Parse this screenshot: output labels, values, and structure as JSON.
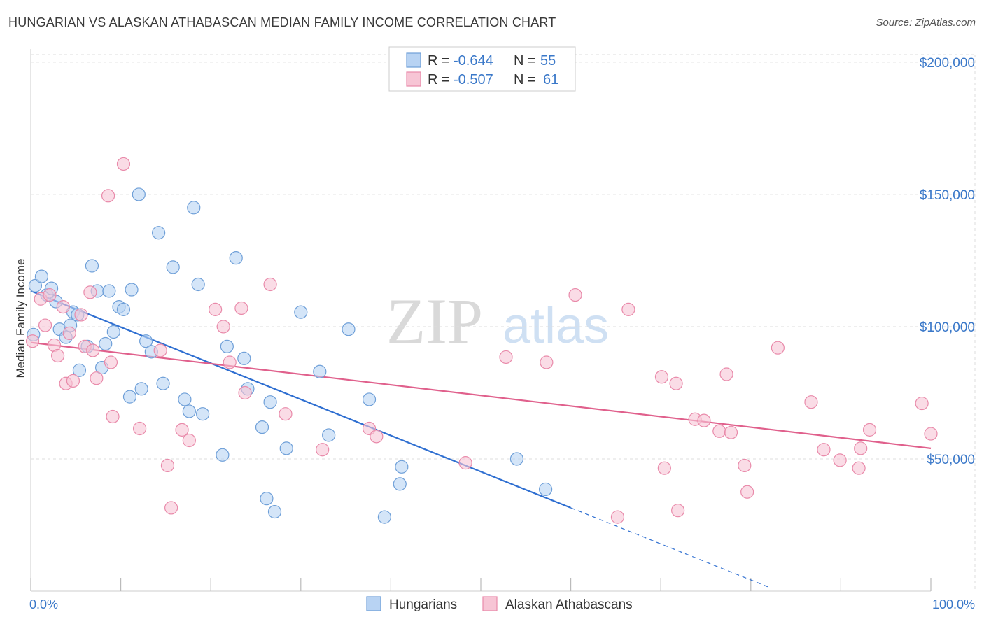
{
  "header": {
    "title": "HUNGARIAN VS ALASKAN ATHABASCAN MEDIAN FAMILY INCOME CORRELATION CHART",
    "source": "Source: ZipAtlas.com"
  },
  "watermark": {
    "zip": "ZIP",
    "atlas": "atlas"
  },
  "colors": {
    "blue_fill": "#b8d3f3",
    "blue_stroke": "#6e9fd8",
    "blue_line": "#2f6fd1",
    "pink_fill": "#f7c5d5",
    "pink_stroke": "#e98aaa",
    "pink_line": "#e0608c",
    "tick_text": "#3a78c9",
    "grid": "#dddddd"
  },
  "legend": {
    "rows": [
      {
        "r_label": "R = ",
        "r_value": "-0.644",
        "n_label": "N = ",
        "n_value": "55",
        "color": "#b8d3f3"
      },
      {
        "r_label": "R = ",
        "r_value": "-0.507",
        "n_label": "N = ",
        "n_value": "61",
        "color": "#f7c5d5"
      }
    ]
  },
  "chart_data": {
    "type": "scatter",
    "title": "HUNGARIAN VS ALASKAN ATHABASCAN MEDIAN FAMILY INCOME CORRELATION CHART",
    "xlabel": "",
    "ylabel": "Median Family Income",
    "xlim": [
      0,
      100
    ],
    "ylim": [
      0,
      205000
    ],
    "x_tick_labels": [
      "0.0%",
      "100.0%"
    ],
    "y_ticks": [
      50000,
      100000,
      150000,
      200000
    ],
    "y_tick_labels": [
      "$50,000",
      "$100,000",
      "$150,000",
      "$200,000"
    ],
    "grid": true,
    "legend_position": "top-center",
    "series": [
      {
        "name": "Hungarians",
        "r": -0.644,
        "n": 55,
        "trend": {
          "x0": 0,
          "y0": 113500,
          "x1": 60,
          "y1": 31500,
          "dash_to_x": 82,
          "dash_to_y": 1500
        },
        "points": [
          [
            0.3,
            97000
          ],
          [
            0.5,
            115500
          ],
          [
            1.2,
            119000
          ],
          [
            1.8,
            112000
          ],
          [
            2.3,
            114500
          ],
          [
            2.8,
            109500
          ],
          [
            3.2,
            99000
          ],
          [
            3.9,
            96000
          ],
          [
            4.4,
            100500
          ],
          [
            4.7,
            105500
          ],
          [
            5.2,
            104500
          ],
          [
            5.4,
            83500
          ],
          [
            6.3,
            92500
          ],
          [
            6.8,
            123000
          ],
          [
            7.4,
            113500
          ],
          [
            7.9,
            84500
          ],
          [
            8.3,
            93500
          ],
          [
            8.7,
            113500
          ],
          [
            9.2,
            98000
          ],
          [
            9.8,
            107500
          ],
          [
            10.3,
            106500
          ],
          [
            11.2,
            114000
          ],
          [
            11.0,
            73500
          ],
          [
            12.0,
            150000
          ],
          [
            12.3,
            76500
          ],
          [
            12.8,
            94500
          ],
          [
            13.4,
            90500
          ],
          [
            14.2,
            135500
          ],
          [
            14.7,
            78500
          ],
          [
            15.8,
            122500
          ],
          [
            17.1,
            72500
          ],
          [
            17.6,
            68000
          ],
          [
            18.1,
            145000
          ],
          [
            18.6,
            116000
          ],
          [
            19.1,
            67000
          ],
          [
            21.3,
            51500
          ],
          [
            21.8,
            92500
          ],
          [
            23.7,
            88000
          ],
          [
            24.1,
            76500
          ],
          [
            22.8,
            126000
          ],
          [
            25.7,
            62000
          ],
          [
            26.2,
            35000
          ],
          [
            26.6,
            71500
          ],
          [
            27.1,
            30000
          ],
          [
            28.4,
            54000
          ],
          [
            30.0,
            105500
          ],
          [
            32.1,
            83000
          ],
          [
            33.1,
            59000
          ],
          [
            35.3,
            99000
          ],
          [
            37.6,
            72500
          ],
          [
            39.3,
            28000
          ],
          [
            41.2,
            47000
          ],
          [
            41.0,
            40500
          ],
          [
            54.0,
            50000
          ],
          [
            57.2,
            38500
          ]
        ]
      },
      {
        "name": "Alaskan Athabascans",
        "r": -0.507,
        "n": 61,
        "trend": {
          "x0": 0,
          "y0": 94000,
          "x1": 100,
          "y1": 54000
        },
        "points": [
          [
            0.2,
            94500
          ],
          [
            1.1,
            110500
          ],
          [
            1.6,
            100500
          ],
          [
            2.1,
            112000
          ],
          [
            2.6,
            93000
          ],
          [
            3.0,
            89000
          ],
          [
            3.6,
            107500
          ],
          [
            3.9,
            78500
          ],
          [
            4.3,
            97500
          ],
          [
            4.7,
            79500
          ],
          [
            5.6,
            104500
          ],
          [
            6.0,
            92500
          ],
          [
            6.6,
            113000
          ],
          [
            6.9,
            91000
          ],
          [
            7.3,
            80500
          ],
          [
            8.9,
            86500
          ],
          [
            8.6,
            149500
          ],
          [
            9.1,
            66000
          ],
          [
            10.3,
            161500
          ],
          [
            12.1,
            61500
          ],
          [
            14.4,
            91000
          ],
          [
            15.2,
            47500
          ],
          [
            15.6,
            31500
          ],
          [
            16.8,
            61000
          ],
          [
            17.6,
            57000
          ],
          [
            20.5,
            106500
          ],
          [
            21.4,
            100000
          ],
          [
            22.1,
            86500
          ],
          [
            23.4,
            107000
          ],
          [
            23.8,
            75000
          ],
          [
            26.6,
            116000
          ],
          [
            28.3,
            67000
          ],
          [
            32.4,
            53500
          ],
          [
            37.6,
            61500
          ],
          [
            38.4,
            58500
          ],
          [
            48.3,
            48500
          ],
          [
            52.8,
            88500
          ],
          [
            57.3,
            86500
          ],
          [
            60.5,
            112000
          ],
          [
            65.2,
            28000
          ],
          [
            66.4,
            106500
          ],
          [
            70.1,
            81000
          ],
          [
            70.4,
            46500
          ],
          [
            71.7,
            78500
          ],
          [
            71.9,
            30500
          ],
          [
            73.8,
            65000
          ],
          [
            74.8,
            64500
          ],
          [
            76.5,
            60500
          ],
          [
            77.3,
            82000
          ],
          [
            77.8,
            60000
          ],
          [
            79.3,
            47500
          ],
          [
            79.6,
            37500
          ],
          [
            83.0,
            92000
          ],
          [
            86.7,
            71500
          ],
          [
            88.1,
            53500
          ],
          [
            89.9,
            49500
          ],
          [
            92.0,
            46500
          ],
          [
            92.2,
            54000
          ],
          [
            93.2,
            61000
          ],
          [
            99.0,
            71000
          ],
          [
            100.0,
            59500
          ]
        ]
      }
    ]
  },
  "bottom_legend": [
    {
      "label": "Hungarians",
      "color": "#b8d3f3"
    },
    {
      "label": "Alaskan Athabascans",
      "color": "#f7c5d5"
    }
  ]
}
